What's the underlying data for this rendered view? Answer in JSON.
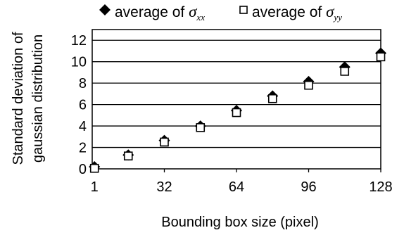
{
  "chart_data": {
    "type": "scatter",
    "xlabel": "Bounding box size (pixel)",
    "ylabel_line1": "Standard deviation of",
    "ylabel_line2": "gaussian distribution",
    "x_ticks": [
      1,
      32,
      64,
      96,
      128
    ],
    "x_tick_labels": [
      "1",
      "32",
      "64",
      "96",
      "128"
    ],
    "y_ticks": [
      0,
      2,
      4,
      6,
      8,
      10,
      12
    ],
    "y_tick_labels": [
      "0",
      "2",
      "4",
      "6",
      "8",
      "10",
      "12"
    ],
    "xlim": [
      0,
      128
    ],
    "ylim": [
      0,
      13
    ],
    "grid": "horizontal",
    "legend_position": "top",
    "series": [
      {
        "name": "average of σxx",
        "legend_prefix": "average of ",
        "symbol_base": "σ",
        "symbol_sub": "xx",
        "marker": "filled-diamond",
        "x": [
          1,
          16,
          32,
          48,
          64,
          80,
          96,
          112,
          128
        ],
        "y": [
          0.2,
          1.3,
          2.65,
          4.0,
          5.45,
          6.8,
          8.15,
          9.5,
          10.8
        ]
      },
      {
        "name": "average of σyy",
        "legend_prefix": "average of ",
        "symbol_base": "σ",
        "symbol_sub": "yy",
        "marker": "hollow-square",
        "x": [
          1,
          16,
          32,
          48,
          64,
          80,
          96,
          112,
          128
        ],
        "y": [
          0.05,
          1.2,
          2.5,
          3.85,
          5.25,
          6.55,
          7.8,
          9.1,
          10.45
        ]
      }
    ]
  }
}
